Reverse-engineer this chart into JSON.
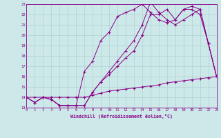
{
  "xlabel": "Windchill (Refroidissement éolien,°C)",
  "bg_color": "#cce8e8",
  "line_color": "#880088",
  "grid_color": "#aacccc",
  "xlim": [
    0,
    23
  ],
  "ylim": [
    13,
    23
  ],
  "yticks": [
    13,
    14,
    15,
    16,
    17,
    18,
    19,
    20,
    21,
    22,
    23
  ],
  "xticks": [
    0,
    1,
    2,
    3,
    4,
    5,
    6,
    7,
    8,
    9,
    10,
    11,
    12,
    13,
    14,
    15,
    16,
    17,
    18,
    19,
    20,
    21,
    22,
    23
  ],
  "series": [
    [
      14.0,
      13.5,
      14.0,
      13.8,
      13.2,
      13.2,
      13.2,
      13.2,
      14.5,
      15.5,
      16.5,
      17.5,
      18.5,
      19.5,
      21.0,
      23.2,
      22.2,
      21.5,
      21.0,
      21.5,
      22.0,
      22.5,
      19.2,
      16.0
    ],
    [
      14.0,
      13.5,
      14.0,
      13.8,
      13.2,
      13.2,
      13.2,
      16.5,
      17.5,
      19.5,
      20.3,
      21.8,
      22.2,
      22.5,
      23.0,
      22.2,
      21.5,
      21.2,
      21.5,
      22.5,
      22.8,
      22.5,
      19.2,
      16.0
    ],
    [
      14.0,
      13.5,
      14.0,
      13.8,
      13.2,
      13.2,
      13.2,
      13.2,
      14.5,
      15.5,
      16.2,
      17.0,
      17.8,
      18.5,
      20.0,
      22.0,
      22.0,
      22.5,
      21.5,
      22.5,
      22.5,
      22.0,
      19.2,
      16.0
    ],
    [
      14.0,
      14.0,
      14.0,
      14.0,
      14.0,
      14.0,
      14.0,
      14.0,
      14.2,
      14.4,
      14.6,
      14.7,
      14.8,
      14.9,
      15.0,
      15.1,
      15.2,
      15.4,
      15.5,
      15.6,
      15.7,
      15.8,
      15.9,
      16.0
    ]
  ]
}
